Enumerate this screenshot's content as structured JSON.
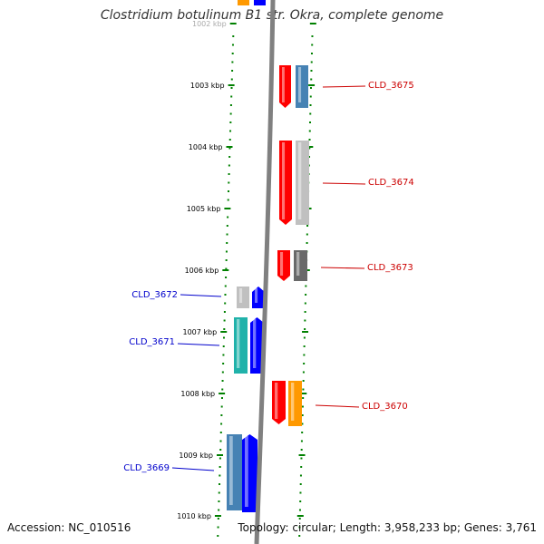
{
  "title": "Clostridium botulinum B1 str. Okra, complete genome",
  "footer": {
    "accession": "Accession: NC_010516",
    "topology": "Topology: circular; Length: 3,958,233 bp; Genes: 3,761"
  },
  "colors": {
    "ruler": "#008000",
    "backbone": "#808080",
    "red": "#ff0000",
    "blue": "#0000ff",
    "steel": "#4682b4",
    "silver": "#c0c0c0",
    "gray": "#696969",
    "orange": "#ff9900",
    "cyan": "#20b2aa",
    "label_red": "#cc0000",
    "label_blue": "#0000cc"
  },
  "ruler": {
    "ticks": [
      {
        "label": "1002 kbp"
      },
      {
        "label": "1003 kbp"
      },
      {
        "label": "1004 kbp"
      },
      {
        "label": "1005 kbp"
      },
      {
        "label": "1006 kbp"
      },
      {
        "label": "1007 kbp"
      },
      {
        "label": "1008 kbp"
      },
      {
        "label": "1009 kbp"
      },
      {
        "label": "1010 kbp"
      }
    ]
  },
  "genes": [
    {
      "name": "CLD_3675",
      "strand": "right",
      "color_key": "red"
    },
    {
      "name": "CLD_3674",
      "strand": "right",
      "color_key": "red"
    },
    {
      "name": "CLD_3673",
      "strand": "right",
      "color_key": "red"
    },
    {
      "name": "CLD_3672",
      "strand": "left",
      "color_key": "blue"
    },
    {
      "name": "CLD_3671",
      "strand": "left",
      "color_key": "blue"
    },
    {
      "name": "CLD_3670",
      "strand": "right",
      "color_key": "red"
    },
    {
      "name": "CLD_3669",
      "strand": "left",
      "color_key": "blue"
    }
  ]
}
